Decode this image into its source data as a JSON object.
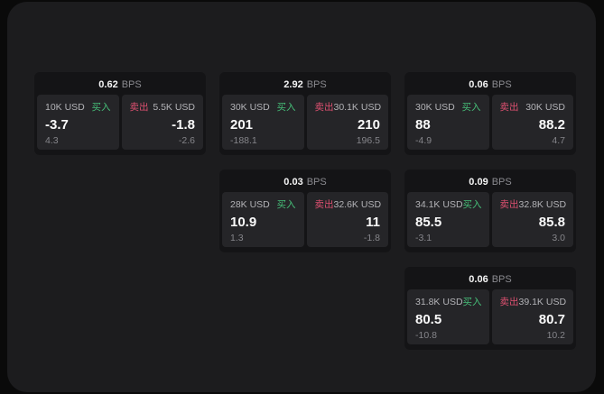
{
  "labels": {
    "bps": "BPS",
    "buy": "买入",
    "sell": "卖出"
  },
  "colors": {
    "buy_accent": "#46be78",
    "sell_accent": "#dd5070",
    "panel_bg": "#1c1c1e",
    "card_bg": "#141416",
    "tile_bg": "#252528"
  },
  "cards": [
    {
      "bps": "0.62",
      "buy": {
        "amount": "10K USD",
        "price": "-3.7",
        "delta": "4.3"
      },
      "sell": {
        "amount": "5.5K USD",
        "price": "-1.8",
        "delta": "-2.6"
      }
    },
    {
      "bps": "2.92",
      "buy": {
        "amount": "30K USD",
        "price": "201",
        "delta": "-188.1"
      },
      "sell": {
        "amount": "30.1K USD",
        "price": "210",
        "delta": "196.5"
      }
    },
    {
      "bps": "0.06",
      "buy": {
        "amount": "30K USD",
        "price": "88",
        "delta": "-4.9"
      },
      "sell": {
        "amount": "30K USD",
        "price": "88.2",
        "delta": "4.7"
      }
    },
    {
      "bps": "0.03",
      "buy": {
        "amount": "28K USD",
        "price": "10.9",
        "delta": "1.3"
      },
      "sell": {
        "amount": "32.6K USD",
        "price": "11",
        "delta": "-1.8"
      }
    },
    {
      "bps": "0.09",
      "buy": {
        "amount": "34.1K USD",
        "price": "85.5",
        "delta": "-3.1"
      },
      "sell": {
        "amount": "32.8K USD",
        "price": "85.8",
        "delta": "3.0"
      }
    },
    {
      "bps": "0.06",
      "buy": {
        "amount": "31.8K USD",
        "price": "80.5",
        "delta": "-10.8"
      },
      "sell": {
        "amount": "39.1K USD",
        "price": "80.7",
        "delta": "10.2"
      }
    }
  ]
}
